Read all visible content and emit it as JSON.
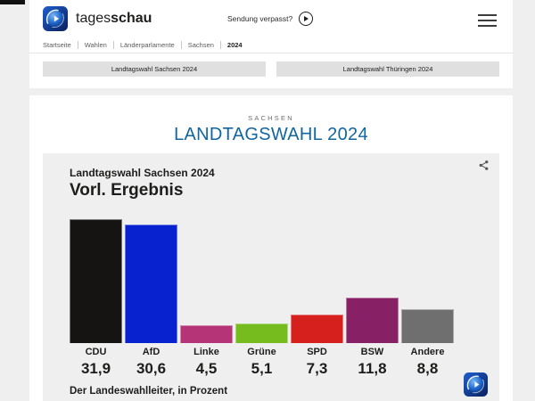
{
  "header": {
    "brand_regular": "tages",
    "brand_bold": "schau",
    "sendung_label": "Sendung verpasst?",
    "breadcrumb": [
      "Startseite",
      "Wahlen",
      "Länderparlamente",
      "Sachsen",
      "2024"
    ]
  },
  "tabs": [
    {
      "label": "Landtagswahl Sachsen 2024"
    },
    {
      "label": "Landtagswahl Thüringen 2024"
    }
  ],
  "main": {
    "kicker": "SACHSEN",
    "title": "LANDTAGSWAHL 2024"
  },
  "chart_card": {
    "subtitle": "Landtagswahl Sachsen 2024",
    "title": "Vorl. Ergebnis",
    "source": "Der Landeswahlleiter, in Prozent"
  },
  "chart_data": {
    "type": "bar",
    "title": "Landtagswahl Sachsen 2024 — Vorl. Ergebnis",
    "categories": [
      "CDU",
      "AfD",
      "Linke",
      "Grüne",
      "SPD",
      "BSW",
      "Andere"
    ],
    "values": [
      31.9,
      30.6,
      4.5,
      5.1,
      7.3,
      11.8,
      8.8
    ],
    "value_labels": [
      "31,9",
      "30,6",
      "4,5",
      "5,1",
      "7,3",
      "11,8",
      "8,8"
    ],
    "bar_colors": [
      "#151413",
      "#0822d0",
      "#b53377",
      "#77bc1f",
      "#d6201d",
      "#872065",
      "#706f6f"
    ],
    "unit": "Prozent",
    "source": "Der Landeswahlleiter",
    "ylim": [
      0,
      32
    ],
    "grid": false,
    "legend": false
  },
  "colors": {
    "title_blue": "#11669f",
    "text_dark": "#1d1d1b",
    "tab_bg": "#e0e0e0",
    "card_bg": "#efefef"
  }
}
